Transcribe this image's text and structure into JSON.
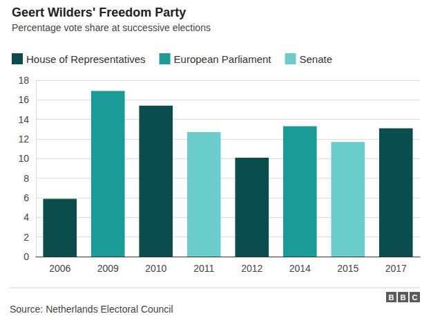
{
  "chart_data": {
    "type": "bar",
    "title": "Geert Wilders' Freedom Party",
    "subtitle": "Percentage vote share at successive elections",
    "categories": [
      "2006",
      "2009",
      "2010",
      "2011",
      "2012",
      "2014",
      "2015",
      "2017"
    ],
    "series": [
      {
        "name": "House of Representatives",
        "color": "#0b4d4d",
        "values": [
          5.9,
          null,
          15.4,
          null,
          10.1,
          null,
          null,
          13.1
        ]
      },
      {
        "name": "European Parliament",
        "color": "#1a9b98",
        "values": [
          null,
          16.9,
          null,
          null,
          null,
          13.3,
          null,
          null
        ]
      },
      {
        "name": "Senate",
        "color": "#6acdcc",
        "values": [
          null,
          null,
          null,
          12.7,
          null,
          null,
          11.7,
          null
        ]
      }
    ],
    "ylim": [
      0,
      18
    ],
    "yticks": [
      0,
      2,
      4,
      6,
      8,
      10,
      12,
      14,
      16,
      18
    ],
    "grid": true,
    "legend": "top-left",
    "source": "Source: Netherlands Electoral Council",
    "credit": "BBC"
  }
}
